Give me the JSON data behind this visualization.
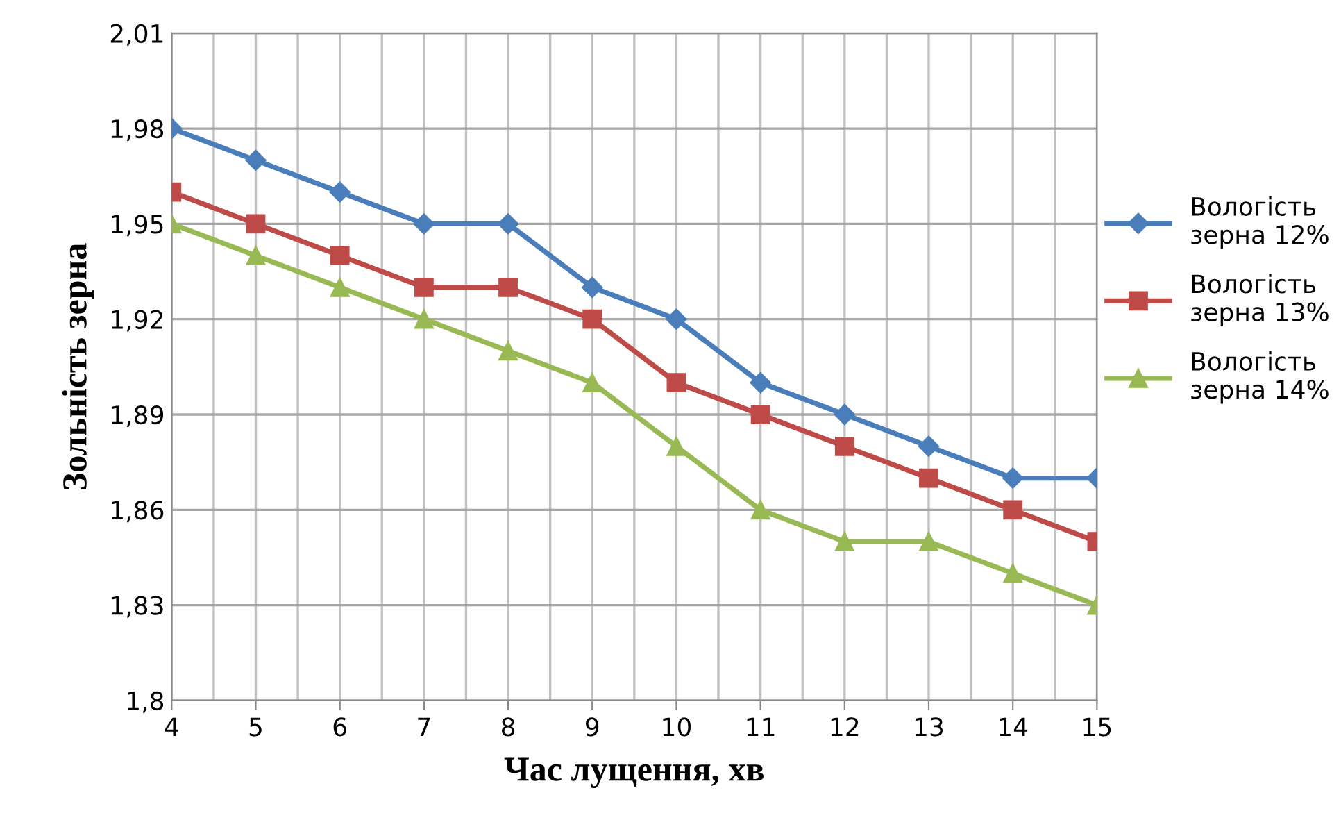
{
  "chart_data": {
    "type": "line",
    "xlabel": "Час лущення, хв",
    "ylabel": "Зольність зерна",
    "x": [
      4,
      5,
      6,
      7,
      8,
      9,
      10,
      11,
      12,
      13,
      14,
      15
    ],
    "series": [
      {
        "name": "Вологість\nзерна 12%",
        "color": "#4a7ebb",
        "marker": "diamond",
        "values": [
          1.98,
          1.97,
          1.96,
          1.95,
          1.95,
          1.93,
          1.92,
          1.9,
          1.89,
          1.88,
          1.87,
          1.87
        ]
      },
      {
        "name": "Вологість\nзерна 13%",
        "color": "#be4b48",
        "marker": "square",
        "values": [
          1.96,
          1.95,
          1.94,
          1.93,
          1.93,
          1.92,
          1.9,
          1.89,
          1.88,
          1.87,
          1.86,
          1.85
        ]
      },
      {
        "name": "Вологість\nзерна 14%",
        "color": "#98b954",
        "marker": "triangle",
        "values": [
          1.95,
          1.94,
          1.93,
          1.92,
          1.91,
          1.9,
          1.88,
          1.86,
          1.85,
          1.85,
          1.84,
          1.83
        ]
      }
    ],
    "xlim": [
      4,
      15
    ],
    "xticks": [
      4,
      5,
      6,
      7,
      8,
      9,
      10,
      11,
      12,
      13,
      14,
      15
    ],
    "ylim": [
      1.8,
      2.01
    ],
    "yticks": [
      {
        "value": 1.8,
        "label": "1,8"
      },
      {
        "value": 1.83,
        "label": "1,83"
      },
      {
        "value": 1.86,
        "label": "1,86"
      },
      {
        "value": 1.89,
        "label": "1,89"
      },
      {
        "value": 1.92,
        "label": "1,92"
      },
      {
        "value": 1.95,
        "label": "1,95"
      },
      {
        "value": 1.98,
        "label": "1,98"
      },
      {
        "value": 2.01,
        "label": "2,01"
      }
    ],
    "grid": true,
    "legend": "right",
    "line_style": "solid"
  }
}
